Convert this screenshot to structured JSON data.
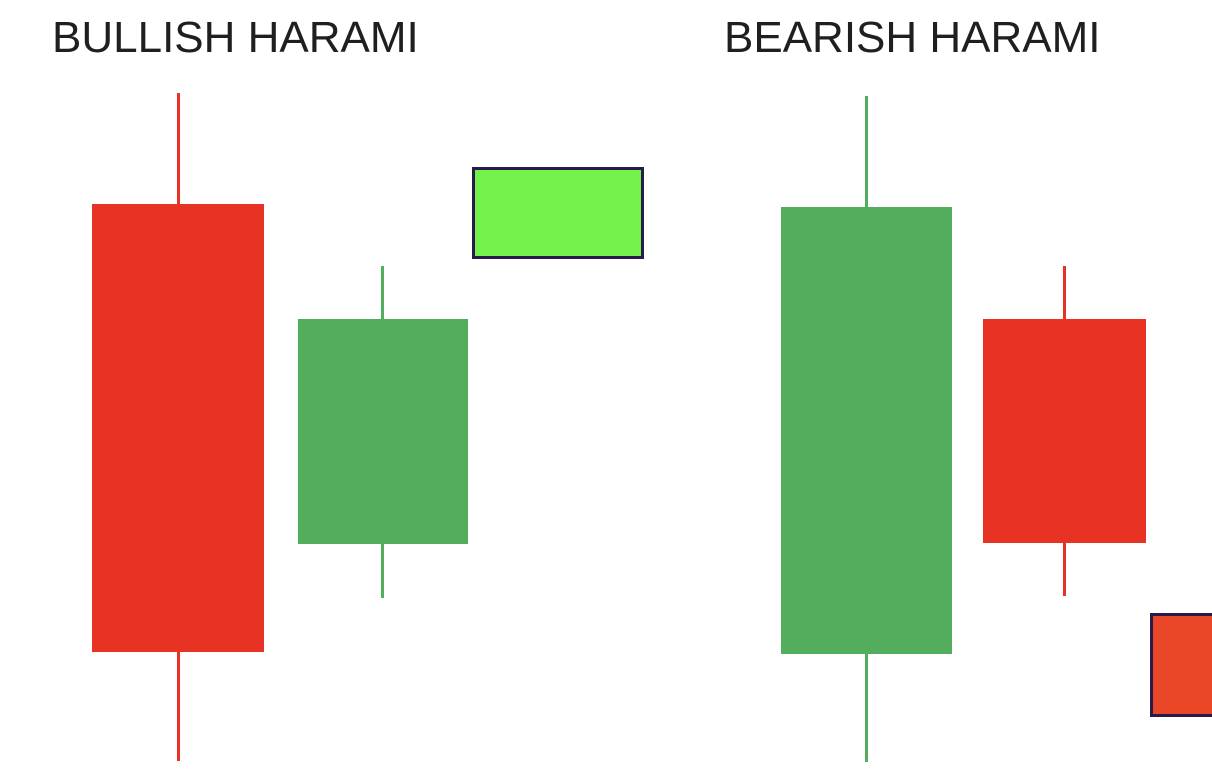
{
  "colors": {
    "bearish_candle": "#e83324",
    "bullish_candle": "#52ad5d",
    "bullish_swatch": "#72f24a",
    "bearish_swatch": "#e84626",
    "swatch_border": "#2a1a4a",
    "title_text": "#1f1f1f",
    "background": "#ffffff"
  },
  "bullish_harami": {
    "title": "BULLISH HARAMI",
    "candles": [
      {
        "direction": "bearish",
        "color": "#e83324"
      },
      {
        "direction": "bullish",
        "color": "#52ad5d"
      }
    ],
    "swatch_color": "#72f24a"
  },
  "bearish_harami": {
    "title": "BEARISH HARAMI",
    "candles": [
      {
        "direction": "bullish",
        "color": "#52ad5d"
      },
      {
        "direction": "bearish",
        "color": "#e83324"
      }
    ],
    "swatch_color": "#e84626"
  }
}
